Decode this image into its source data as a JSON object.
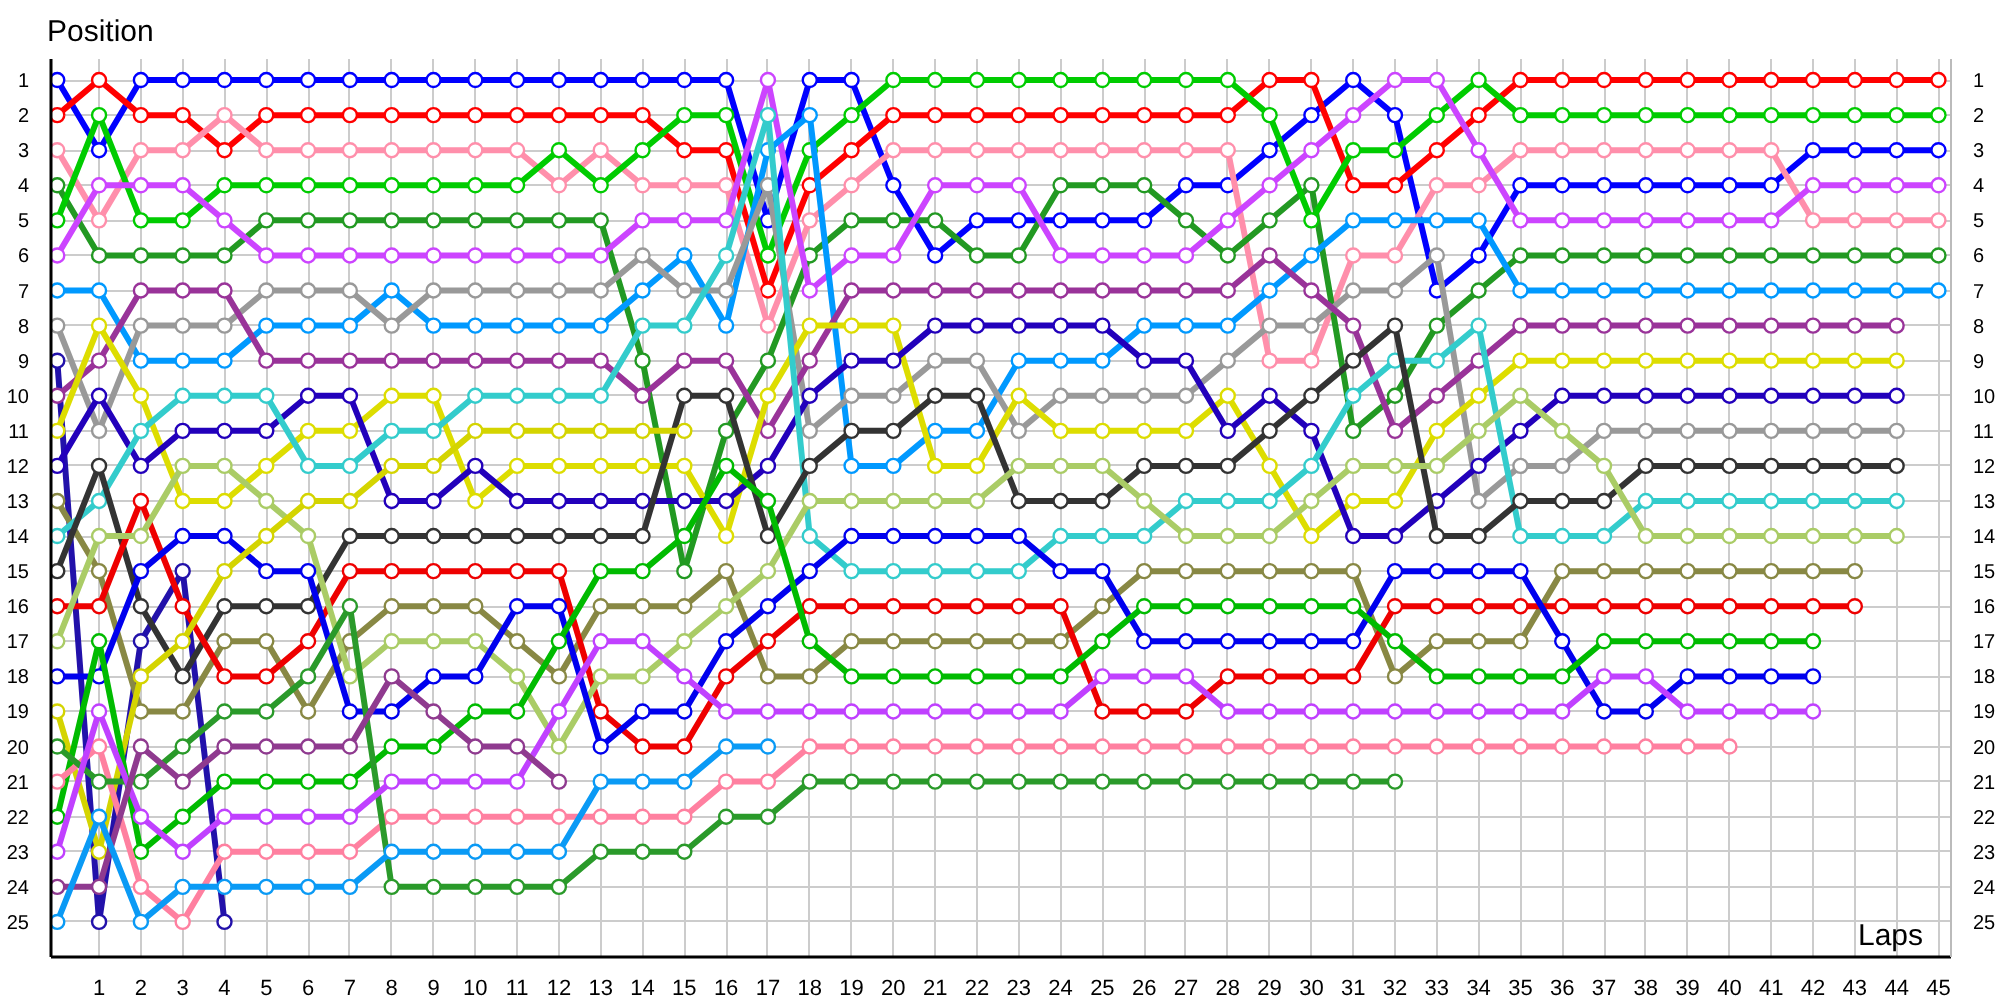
{
  "chart_data": {
    "type": "line",
    "xlabel": "Laps",
    "ylabel": "Position",
    "x": [
      0,
      1,
      2,
      3,
      4,
      5,
      6,
      7,
      8,
      9,
      10,
      11,
      12,
      13,
      14,
      15,
      16,
      17,
      18,
      19,
      20,
      21,
      22,
      23,
      24,
      25,
      26,
      27,
      28,
      29,
      30,
      31,
      32,
      33,
      34,
      35,
      36,
      37,
      38,
      39,
      40,
      41,
      42,
      43,
      44,
      45
    ],
    "xlim": [
      -0.15,
      45.3
    ],
    "xticks": [
      1,
      2,
      3,
      4,
      5,
      6,
      7,
      8,
      9,
      10,
      11,
      12,
      13,
      14,
      15,
      16,
      17,
      18,
      19,
      20,
      21,
      22,
      23,
      24,
      25,
      26,
      27,
      28,
      29,
      30,
      31,
      32,
      33,
      34,
      35,
      36,
      37,
      38,
      39,
      40,
      41,
      42,
      43,
      44,
      45
    ],
    "ylim": [
      26,
      0.4
    ],
    "yticks": [
      1,
      2,
      3,
      4,
      5,
      6,
      7,
      8,
      9,
      10,
      11,
      12,
      13,
      14,
      15,
      16,
      17,
      18,
      19,
      20,
      21,
      22,
      23,
      24,
      25
    ],
    "y2lim": [
      26,
      0.4
    ],
    "y2ticks": [
      1,
      2,
      3,
      4,
      5,
      6,
      7,
      8,
      9,
      10,
      11,
      12,
      13,
      14,
      15,
      16,
      17,
      18,
      19,
      20,
      21,
      22,
      23,
      24,
      25
    ],
    "grid": true,
    "marker": "circle",
    "line_style": "solid",
    "series": [
      {
        "color": "#0000ff",
        "values": [
          1,
          3,
          1,
          1,
          1,
          1,
          1,
          1,
          1,
          1,
          1,
          1,
          1,
          1,
          1,
          1,
          1,
          5,
          1,
          1,
          4,
          6,
          5,
          5,
          5,
          5,
          5,
          4,
          4,
          3,
          2,
          1,
          2,
          7,
          6,
          4,
          4,
          4,
          4,
          4,
          4,
          4,
          3,
          3,
          3,
          3
        ]
      },
      {
        "color": "#ff0000",
        "values": [
          2,
          1,
          2,
          2,
          3,
          2,
          2,
          2,
          2,
          2,
          2,
          2,
          2,
          2,
          2,
          3,
          3,
          7,
          4,
          3,
          2,
          2,
          2,
          2,
          2,
          2,
          2,
          2,
          2,
          1,
          1,
          4,
          4,
          3,
          2,
          1,
          1,
          1,
          1,
          1,
          1,
          1,
          1,
          1,
          1,
          1
        ]
      },
      {
        "color": "#ff8fab",
        "values": [
          3,
          5,
          3,
          3,
          2,
          3,
          3,
          3,
          3,
          3,
          3,
          3,
          4,
          3,
          4,
          4,
          4,
          8,
          5,
          4,
          3,
          3,
          3,
          3,
          3,
          3,
          3,
          3,
          3,
          9,
          9,
          6,
          6,
          4,
          4,
          3,
          3,
          3,
          3,
          3,
          3,
          3,
          5,
          5,
          5,
          5
        ]
      },
      {
        "color": "#229922",
        "values": [
          4,
          6,
          6,
          6,
          6,
          5,
          5,
          5,
          5,
          5,
          5,
          5,
          5,
          5,
          9,
          15,
          11,
          9,
          6,
          5,
          5,
          5,
          6,
          6,
          4,
          4,
          4,
          5,
          6,
          5,
          4,
          11,
          10,
          8,
          7,
          6,
          6,
          6,
          6,
          6,
          6,
          6,
          6,
          6,
          6,
          6
        ]
      },
      {
        "color": "#00cc00",
        "values": [
          5,
          2,
          5,
          5,
          4,
          4,
          4,
          4,
          4,
          4,
          4,
          4,
          3,
          4,
          3,
          2,
          2,
          6,
          3,
          2,
          1,
          1,
          1,
          1,
          1,
          1,
          1,
          1,
          1,
          2,
          5,
          3,
          3,
          2,
          1,
          2,
          2,
          2,
          2,
          2,
          2,
          2,
          2,
          2,
          2,
          2
        ]
      },
      {
        "color": "#cc44ff",
        "values": [
          6,
          4,
          4,
          4,
          5,
          6,
          6,
          6,
          6,
          6,
          6,
          6,
          6,
          6,
          5,
          5,
          5,
          1,
          7,
          6,
          6,
          4,
          4,
          4,
          6,
          6,
          6,
          6,
          5,
          4,
          3,
          2,
          1,
          1,
          3,
          5,
          5,
          5,
          5,
          5,
          5,
          5,
          4,
          4,
          4,
          4
        ]
      },
      {
        "color": "#0099ff",
        "values": [
          7,
          7,
          9,
          9,
          9,
          8,
          8,
          8,
          7,
          8,
          8,
          8,
          8,
          8,
          7,
          6,
          8,
          3,
          2,
          12,
          12,
          11,
          11,
          9,
          9,
          9,
          8,
          8,
          8,
          7,
          6,
          5,
          5,
          5,
          5,
          7,
          7,
          7,
          7,
          7,
          7,
          7,
          7,
          7,
          7,
          7
        ]
      },
      {
        "color": "#999999",
        "values": [
          8,
          11,
          8,
          8,
          8,
          7,
          7,
          7,
          8,
          7,
          7,
          7,
          7,
          7,
          6,
          7,
          7,
          4,
          11,
          10,
          10,
          9,
          9,
          11,
          10,
          10,
          10,
          10,
          9,
          8,
          8,
          7,
          7,
          6,
          13,
          12,
          12,
          11,
          11,
          11,
          11,
          11,
          11,
          11,
          11,
          null
        ]
      },
      {
        "color": "#2211aa",
        "values": [
          9,
          25,
          17,
          15,
          25,
          null,
          null,
          null,
          null,
          null,
          null,
          null,
          null,
          null,
          null,
          null,
          null,
          null,
          null,
          null,
          null,
          null,
          null,
          null,
          null,
          null,
          null,
          null,
          null,
          null,
          null,
          null,
          null,
          null,
          null,
          null,
          null,
          null,
          null,
          null,
          null,
          null,
          null,
          null,
          null,
          null
        ]
      },
      {
        "color": "#993399",
        "values": [
          10,
          9,
          7,
          7,
          7,
          9,
          9,
          9,
          9,
          9,
          9,
          9,
          9,
          9,
          10,
          9,
          9,
          11,
          9,
          7,
          7,
          7,
          7,
          7,
          7,
          7,
          7,
          7,
          7,
          6,
          7,
          8,
          11,
          10,
          9,
          8,
          8,
          8,
          8,
          8,
          8,
          8,
          8,
          8,
          8,
          null
        ]
      },
      {
        "color": "#dddd00",
        "values": [
          11,
          8,
          10,
          13,
          13,
          12,
          11,
          11,
          10,
          10,
          13,
          12,
          12,
          12,
          12,
          12,
          14,
          10,
          8,
          8,
          8,
          12,
          12,
          10,
          11,
          11,
          11,
          11,
          10,
          12,
          14,
          13,
          13,
          11,
          10,
          9,
          9,
          9,
          9,
          9,
          9,
          9,
          9,
          9,
          9,
          null
        ]
      },
      {
        "color": "#2200bb",
        "values": [
          12,
          10,
          12,
          11,
          11,
          11,
          10,
          10,
          13,
          13,
          12,
          13,
          13,
          13,
          13,
          13,
          13,
          12,
          10,
          9,
          9,
          8,
          8,
          8,
          8,
          8,
          9,
          9,
          11,
          10,
          11,
          14,
          14,
          13,
          12,
          11,
          10,
          10,
          10,
          10,
          10,
          10,
          10,
          10,
          10,
          null
        ]
      },
      {
        "color": "#888844",
        "values": [
          13,
          15,
          19,
          19,
          17,
          17,
          19,
          17,
          16,
          16,
          16,
          17,
          18,
          16,
          16,
          16,
          15,
          18,
          18,
          17,
          17,
          17,
          17,
          17,
          17,
          16,
          15,
          15,
          15,
          15,
          15,
          15,
          18,
          17,
          17,
          17,
          15,
          15,
          15,
          15,
          15,
          15,
          15,
          15,
          null,
          null
        ]
      },
      {
        "color": "#33cccc",
        "values": [
          14,
          13,
          11,
          10,
          10,
          10,
          12,
          12,
          11,
          11,
          10,
          10,
          10,
          10,
          8,
          8,
          6,
          2,
          14,
          15,
          15,
          15,
          15,
          15,
          14,
          14,
          14,
          13,
          13,
          13,
          12,
          10,
          9,
          9,
          8,
          14,
          14,
          14,
          13,
          13,
          13,
          13,
          13,
          13,
          13,
          null
        ]
      },
      {
        "color": "#333333",
        "values": [
          15,
          12,
          16,
          18,
          16,
          16,
          16,
          14,
          14,
          14,
          14,
          14,
          14,
          14,
          14,
          10,
          10,
          14,
          12,
          11,
          11,
          10,
          10,
          13,
          13,
          13,
          12,
          12,
          12,
          11,
          10,
          9,
          8,
          14,
          14,
          13,
          13,
          13,
          12,
          12,
          12,
          12,
          12,
          12,
          12,
          null
        ]
      },
      {
        "color": "#ee0000",
        "values": [
          16,
          16,
          13,
          16,
          18,
          18,
          17,
          15,
          15,
          15,
          15,
          15,
          15,
          19,
          20,
          20,
          18,
          17,
          16,
          16,
          16,
          16,
          16,
          16,
          16,
          19,
          19,
          19,
          18,
          18,
          18,
          18,
          16,
          16,
          16,
          16,
          16,
          16,
          16,
          16,
          16,
          16,
          16,
          16,
          null,
          null
        ]
      },
      {
        "color": "#aacc66",
        "values": [
          17,
          14,
          14,
          12,
          12,
          13,
          14,
          18,
          17,
          17,
          17,
          18,
          20,
          18,
          18,
          17,
          16,
          15,
          13,
          13,
          13,
          13,
          13,
          12,
          12,
          12,
          13,
          14,
          14,
          14,
          13,
          12,
          12,
          12,
          11,
          10,
          11,
          12,
          14,
          14,
          14,
          14,
          14,
          14,
          14,
          null
        ]
      },
      {
        "color": "#0000ee",
        "values": [
          18,
          18,
          15,
          14,
          14,
          15,
          15,
          19,
          19,
          18,
          18,
          16,
          16,
          20,
          19,
          19,
          17,
          16,
          15,
          14,
          14,
          14,
          14,
          14,
          15,
          15,
          17,
          17,
          17,
          17,
          17,
          17,
          15,
          15,
          15,
          15,
          17,
          19,
          19,
          18,
          18,
          18,
          18,
          null,
          null,
          null
        ]
      },
      {
        "color": "#d4d400",
        "values": [
          19,
          23,
          18,
          17,
          15,
          14,
          13,
          13,
          12,
          12,
          11,
          11,
          11,
          11,
          11,
          11,
          null,
          null,
          null,
          null,
          null,
          null,
          null,
          null,
          null,
          null,
          null,
          null,
          null,
          null,
          null,
          null,
          null,
          null,
          null,
          null,
          null,
          null,
          null,
          null,
          null,
          null,
          null,
          null,
          null,
          null
        ]
      },
      {
        "color": "#00bb00",
        "values": [
          22,
          17,
          23,
          22,
          21,
          21,
          21,
          21,
          20,
          20,
          19,
          19,
          17,
          15,
          15,
          14,
          12,
          13,
          17,
          18,
          18,
          18,
          18,
          18,
          18,
          17,
          16,
          16,
          16,
          16,
          16,
          16,
          17,
          18,
          18,
          18,
          18,
          17,
          17,
          17,
          17,
          17,
          17,
          null,
          null,
          null
        ]
      },
      {
        "color": "#ff80a0",
        "values": [
          21,
          20,
          24,
          25,
          23,
          23,
          23,
          23,
          22,
          22,
          22,
          22,
          22,
          22,
          22,
          22,
          21,
          21,
          20,
          20,
          20,
          20,
          20,
          20,
          20,
          20,
          20,
          20,
          20,
          20,
          20,
          20,
          20,
          20,
          20,
          20,
          20,
          20,
          20,
          20,
          20,
          null,
          null,
          null,
          null,
          null
        ]
      },
      {
        "color": "#2a9a2a",
        "values": [
          20,
          21,
          21,
          20,
          19,
          19,
          18,
          16,
          24,
          24,
          24,
          24,
          24,
          23,
          23,
          23,
          22,
          22,
          21,
          21,
          21,
          21,
          21,
          21,
          21,
          21,
          21,
          21,
          21,
          21,
          21,
          21,
          21,
          null,
          null,
          null,
          null,
          null,
          null,
          null,
          null,
          null,
          null,
          null,
          null,
          null
        ]
      },
      {
        "color": "#c040ff",
        "values": [
          23,
          19,
          22,
          23,
          22,
          22,
          22,
          22,
          21,
          21,
          21,
          21,
          19,
          17,
          17,
          18,
          19,
          19,
          19,
          19,
          19,
          19,
          19,
          19,
          19,
          18,
          18,
          18,
          19,
          19,
          19,
          19,
          19,
          19,
          19,
          19,
          19,
          18,
          18,
          19,
          19,
          19,
          19,
          null,
          null,
          null
        ]
      },
      {
        "color": "#8f3a8f",
        "values": [
          24,
          24,
          20,
          21,
          20,
          20,
          20,
          20,
          18,
          19,
          20,
          20,
          21,
          null,
          null,
          null,
          null,
          null,
          null,
          null,
          null,
          null,
          null,
          null,
          null,
          null,
          null,
          null,
          null,
          null,
          null,
          null,
          null,
          null,
          null,
          null,
          null,
          null,
          null,
          null,
          null,
          null,
          null,
          null,
          null,
          null
        ]
      },
      {
        "color": "#0a9af5",
        "values": [
          25,
          22,
          25,
          24,
          24,
          24,
          24,
          24,
          23,
          23,
          23,
          23,
          23,
          21,
          21,
          21,
          20,
          20,
          null,
          null,
          null,
          null,
          null,
          null,
          null,
          null,
          null,
          null,
          null,
          null,
          null,
          null,
          null,
          null,
          null,
          null,
          null,
          null,
          null,
          null,
          null,
          null,
          null,
          null,
          null,
          null
        ]
      }
    ]
  }
}
